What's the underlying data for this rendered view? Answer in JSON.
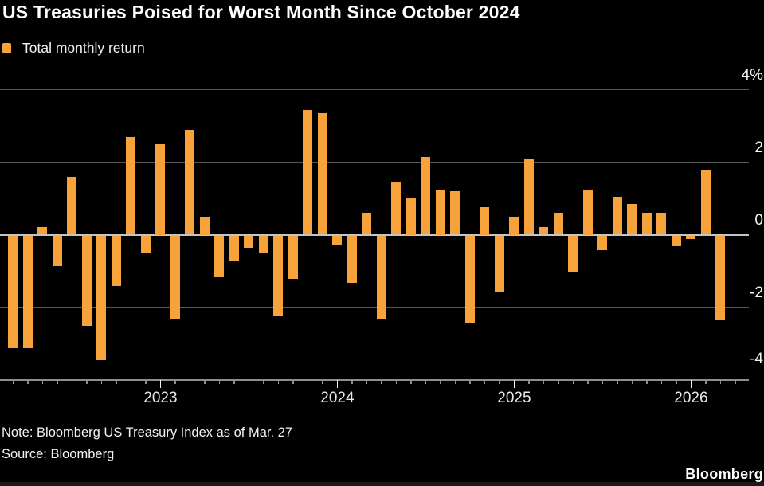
{
  "title": "US Treasuries Poised for Worst Month Since October 2024",
  "legend": {
    "label": "Total monthly return",
    "swatch_color": "#F7A23A"
  },
  "note": "Note: Bloomberg US Treasury Index as of Mar. 27",
  "source": "Source: Bloomberg",
  "logo": "Bloomberg",
  "colors": {
    "background": "#000000",
    "bar": "#F7A23A",
    "gridline": "#565656",
    "zero_line": "#c4c4c4",
    "axis_line": "#8e8e8e",
    "text": "#ffffff"
  },
  "chart_data": {
    "type": "bar",
    "title": "US Treasuries Poised for Worst Month Since October 2024",
    "series_name": "Total monthly return",
    "ylabel": "Total monthly return (%)",
    "xlabel": "",
    "grid": true,
    "legend_position": "top-left",
    "value_axis_side": "right",
    "ylim": [
      -4.4,
      4.4
    ],
    "bar_color": "#F7A23A",
    "x": [
      "Mar 2022",
      "Apr 2022",
      "May 2022",
      "Jun 2022",
      "Jul 2022",
      "Aug 2022",
      "Sep 2022",
      "Oct 2022",
      "Nov 2022",
      "Dec 2022",
      "Jan 2023",
      "Feb 2023",
      "Mar 2023",
      "Apr 2023",
      "May 2023",
      "Jun 2023",
      "Jul 2023",
      "Aug 2023",
      "Sep 2023",
      "Oct 2023",
      "Nov 2023",
      "Dec 2023",
      "Jan 2024",
      "Feb 2024",
      "Mar 2024",
      "Apr 2024",
      "May 2024",
      "Jun 2024",
      "Jul 2024",
      "Aug 2024",
      "Sep 2024",
      "Oct 2024",
      "Nov 2024",
      "Dec 2024",
      "Jan 2025",
      "Feb 2025",
      "Mar 2025",
      "Apr 2025",
      "May 2025",
      "Jun 2025",
      "Jul 2025",
      "Aug 2025",
      "Sep 2025",
      "Oct 2025",
      "Nov 2025",
      "Dec 2025",
      "Jan 2026",
      "Feb 2026",
      "Mar 2026"
    ],
    "values": [
      -3.1,
      -3.1,
      0.2,
      -0.85,
      1.6,
      -2.5,
      -3.45,
      -1.4,
      2.7,
      -0.5,
      2.5,
      -2.3,
      2.9,
      0.5,
      -1.15,
      -0.7,
      -0.35,
      -0.5,
      -2.2,
      -1.2,
      3.45,
      3.35,
      -0.25,
      -1.3,
      0.6,
      -2.3,
      1.45,
      1.0,
      2.15,
      1.25,
      1.2,
      -2.4,
      0.75,
      -1.55,
      0.5,
      2.1,
      0.2,
      0.6,
      -1.0,
      1.25,
      -0.4,
      1.05,
      0.85,
      0.6,
      0.6,
      -0.3,
      -0.1,
      1.8,
      -2.35
    ],
    "y_ticks": [
      {
        "v": 4,
        "label": "4%"
      },
      {
        "v": 2,
        "label": "2"
      },
      {
        "v": 0,
        "label": "0"
      },
      {
        "v": -2,
        "label": "-2"
      },
      {
        "v": -4,
        "label": "-4"
      }
    ],
    "year_tick_labels": [
      "2023",
      "2024",
      "2025",
      "2026"
    ]
  }
}
